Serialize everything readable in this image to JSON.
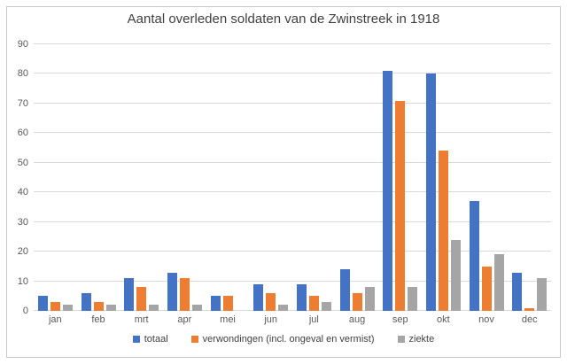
{
  "chart_data": {
    "type": "bar",
    "title": "Aantal overleden soldaten van de Zwinstreek in 1918",
    "categories": [
      "jan",
      "feb",
      "mrt",
      "apr",
      "mei",
      "jun",
      "jul",
      "aug",
      "sep",
      "okt",
      "nov",
      "dec"
    ],
    "series": [
      {
        "name": "totaal",
        "color": "#4472C4",
        "values": [
          5,
          6,
          11,
          13,
          5,
          9,
          9,
          14,
          81,
          80,
          37,
          13
        ]
      },
      {
        "name": "verwondingen (incl. ongeval en vermist)",
        "color": "#ED7D31",
        "values": [
          3,
          3,
          8,
          11,
          5,
          6,
          5,
          6,
          71,
          54,
          15,
          1
        ]
      },
      {
        "name": "ziekte",
        "color": "#A5A5A5",
        "values": [
          2,
          2,
          2,
          2,
          0,
          2,
          3,
          8,
          8,
          24,
          19,
          11
        ]
      }
    ],
    "xlabel": "",
    "ylabel": "",
    "ylim": [
      0,
      90
    ],
    "yticks": [
      0,
      10,
      20,
      30,
      40,
      50,
      60,
      70,
      80,
      90
    ],
    "grid": true,
    "legend_position": "bottom"
  },
  "style": {
    "gridline_color": "#d9d9d9",
    "axis_text_color": "#595959",
    "title_color": "#3f3f3f",
    "border_color": "#c9c9c9",
    "background": "#ffffff"
  }
}
